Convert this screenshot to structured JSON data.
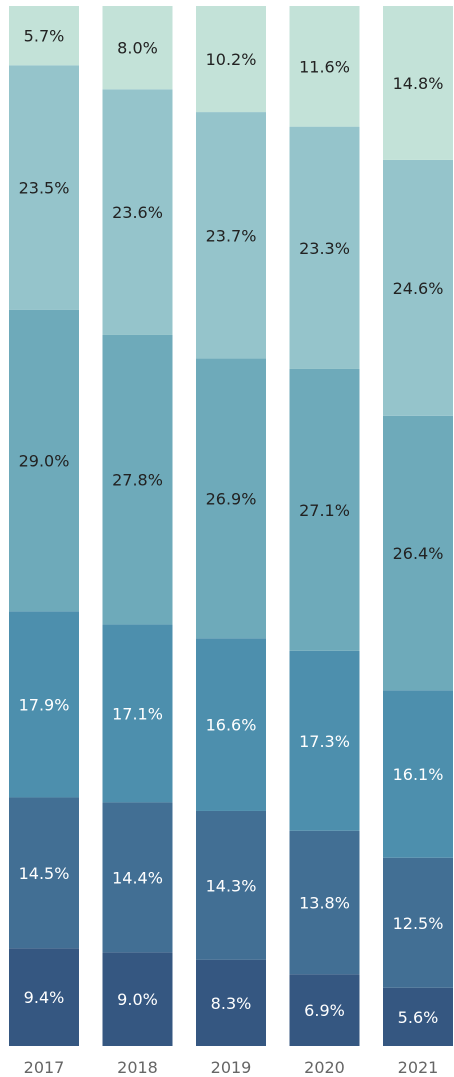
{
  "chart_data": {
    "type": "bar",
    "stacked": true,
    "normalized_percent": true,
    "categories": [
      "2017",
      "2018",
      "2019",
      "2020",
      "2021"
    ],
    "series": [
      {
        "values": [
          9.4,
          9.0,
          8.3,
          6.9,
          5.6
        ],
        "color": "#355781",
        "label_color": "#ffffff"
      },
      {
        "values": [
          14.5,
          14.4,
          14.3,
          13.8,
          12.5
        ],
        "color": "#426f94",
        "label_color": "#ffffff"
      },
      {
        "values": [
          17.9,
          17.1,
          16.6,
          17.3,
          16.1
        ],
        "color": "#4d8fad",
        "label_color": "#ffffff"
      },
      {
        "values": [
          29.0,
          27.8,
          26.9,
          27.1,
          26.4
        ],
        "color": "#6eaaba",
        "label_color": "#222222"
      },
      {
        "values": [
          23.5,
          23.6,
          23.7,
          23.3,
          24.6
        ],
        "color": "#95c4cb",
        "label_color": "#222222"
      },
      {
        "values": [
          5.7,
          8.0,
          10.2,
          11.6,
          14.8
        ],
        "color": "#c3e2d8",
        "label_color": "#222222"
      }
    ],
    "data_labels": [
      [
        "9.4%",
        "9.0%",
        "8.3%",
        "6.9%",
        "5.6%"
      ],
      [
        "14.5%",
        "14.4%",
        "14.3%",
        "13.8%",
        "12.5%"
      ],
      [
        "17.9%",
        "17.1%",
        "16.6%",
        "17.3%",
        "16.1%"
      ],
      [
        "29.0%",
        "27.8%",
        "26.9%",
        "27.1%",
        "26.4%"
      ],
      [
        "23.5%",
        "23.6%",
        "23.7%",
        "23.3%",
        "24.6%"
      ],
      [
        "5.7%",
        "8.0%",
        "10.2%",
        "11.6%",
        "14.8%"
      ]
    ],
    "ylim": [
      0,
      100
    ],
    "legend": "none",
    "grid": false,
    "title": "",
    "xlabel": "",
    "ylabel": ""
  }
}
